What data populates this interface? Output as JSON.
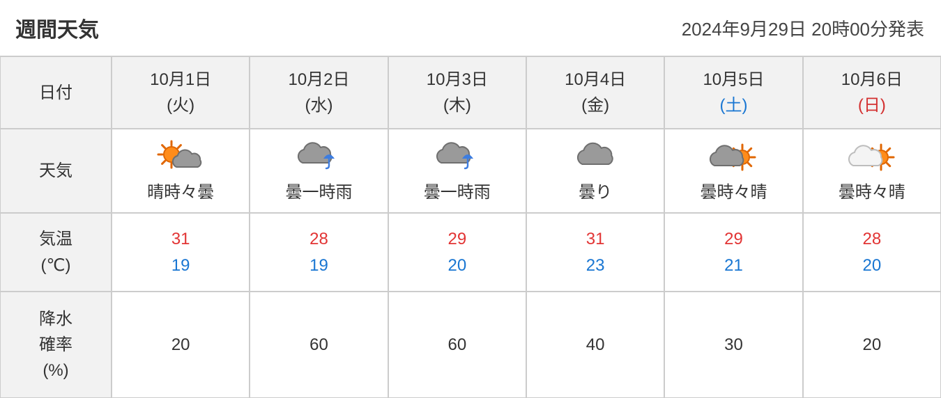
{
  "header": {
    "title": "週間天気",
    "timestamp": "2024年9月29日 20時00分発表"
  },
  "row_labels": {
    "date": "日付",
    "weather": "天気",
    "temp_l1": "気温",
    "temp_l2": "(℃)",
    "pop_l1": "降水",
    "pop_l2": "確率",
    "pop_l3": "(%)"
  },
  "days": [
    {
      "date": "10月1日",
      "dow": "(火)",
      "dow_type": "weekday",
      "icon": "sun-cloud",
      "weather_text": "晴時々曇",
      "high": "31",
      "low": "19",
      "pop": "20"
    },
    {
      "date": "10月2日",
      "dow": "(水)",
      "dow_type": "weekday",
      "icon": "cloud-rain",
      "weather_text": "曇一時雨",
      "high": "28",
      "low": "19",
      "pop": "60"
    },
    {
      "date": "10月3日",
      "dow": "(木)",
      "dow_type": "weekday",
      "icon": "cloud-rain",
      "weather_text": "曇一時雨",
      "high": "29",
      "low": "20",
      "pop": "60"
    },
    {
      "date": "10月4日",
      "dow": "(金)",
      "dow_type": "weekday",
      "icon": "cloud",
      "weather_text": "曇り",
      "high": "31",
      "low": "23",
      "pop": "40"
    },
    {
      "date": "10月5日",
      "dow": "(土)",
      "dow_type": "sat",
      "icon": "cloud-sun",
      "weather_text": "曇時々晴",
      "high": "29",
      "low": "21",
      "pop": "30"
    },
    {
      "date": "10月6日",
      "dow": "(日)",
      "dow_type": "sun",
      "icon": "cloud-sun-light",
      "weather_text": "曇時々晴",
      "high": "28",
      "low": "20",
      "pop": "20"
    }
  ],
  "colors": {
    "border": "#cccccc",
    "header_bg": "#f2f2f2",
    "text": "#333333",
    "high": "#e23434",
    "low": "#1976d2",
    "sat": "#1976d2",
    "sun": "#d32f2f",
    "sun_fill": "#ff8c1a",
    "sun_stroke": "#e06600",
    "cloud_dark_fill": "#9a9a9a",
    "cloud_dark_stroke": "#6f6f6f",
    "cloud_light_fill": "#f4f4f4",
    "cloud_light_stroke": "#bdbdbd",
    "rain": "#3d7de0"
  }
}
